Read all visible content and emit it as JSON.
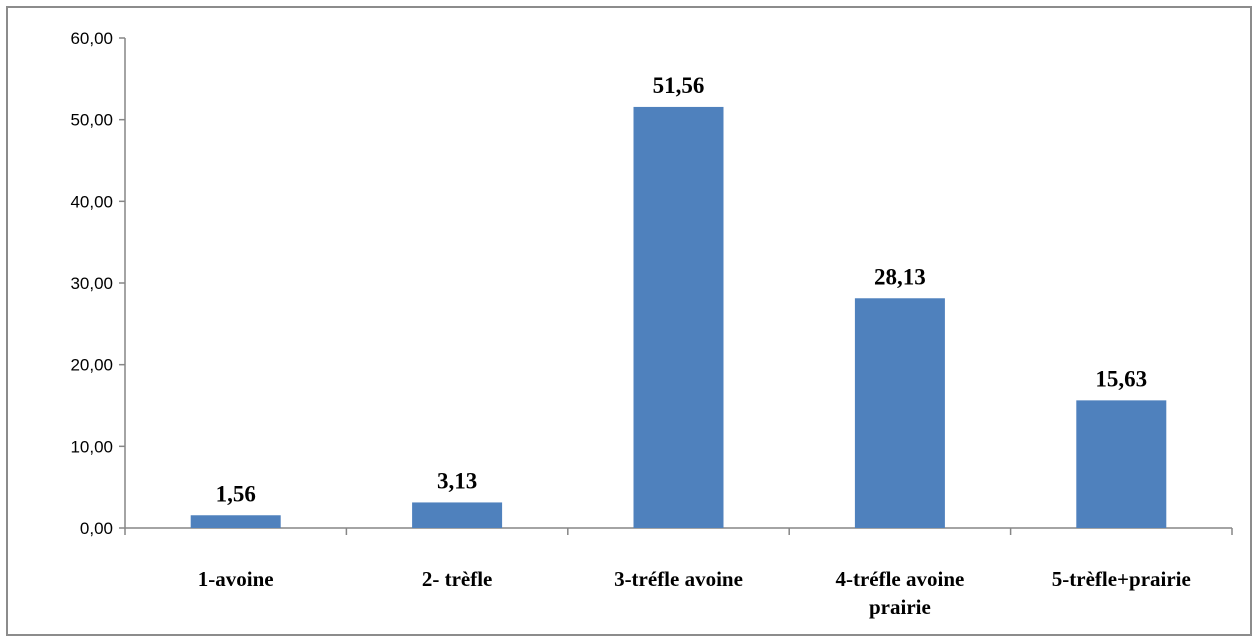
{
  "chart_data": {
    "type": "bar",
    "title": "",
    "xlabel": "",
    "ylabel": "",
    "categories": [
      [
        "1-avoine"
      ],
      [
        "2- trèfle"
      ],
      [
        "3-tréfle avoine"
      ],
      [
        "4-tréfle avoine",
        "prairie"
      ],
      [
        "5-trèfle+prairie"
      ]
    ],
    "values": [
      1.56,
      3.13,
      51.56,
      28.13,
      15.63
    ],
    "data_labels": [
      "1,56",
      "3,13",
      "51,56",
      "28,13",
      "15,63"
    ],
    "ylim": [
      0,
      60
    ],
    "y_ticks": [
      0,
      10,
      20,
      30,
      40,
      50,
      60
    ],
    "y_tick_labels": [
      "0,00",
      "10,00",
      "20,00",
      "30,00",
      "40,00",
      "50,00",
      "60,00"
    ],
    "grid": false,
    "legend": "none",
    "bar_color": "#4f81bd",
    "axis_color": "#868686"
  }
}
